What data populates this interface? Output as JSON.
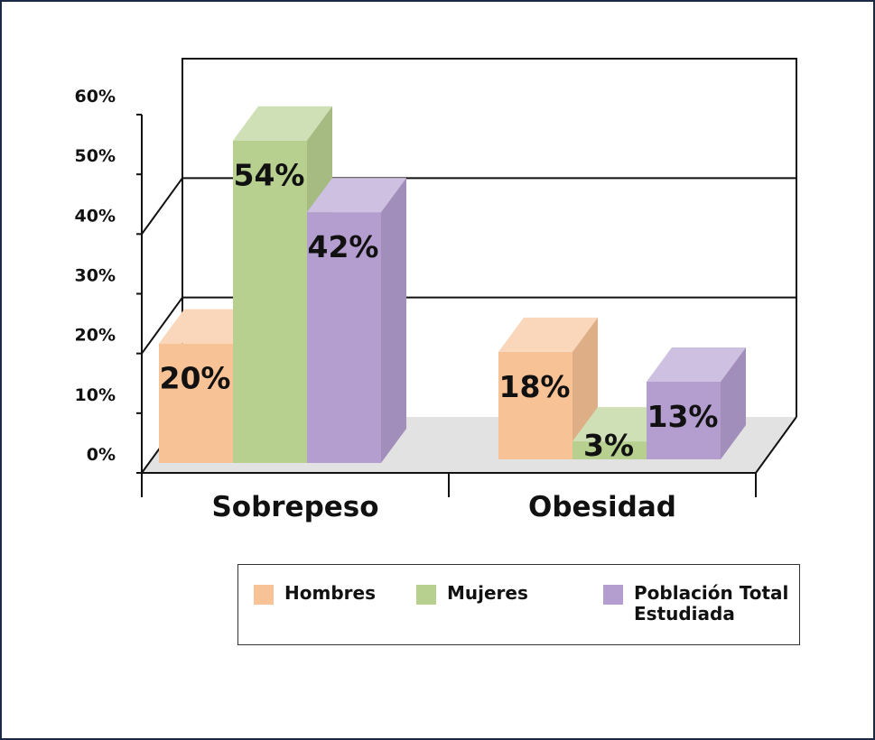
{
  "chart_data": {
    "type": "bar",
    "categories": [
      "Sobrepeso",
      "Obesidad"
    ],
    "series": [
      {
        "name": "Hombres",
        "values": [
          20,
          18
        ],
        "color": "#f7c295"
      },
      {
        "name": "Mujeres",
        "values": [
          54,
          3
        ],
        "color": "#b7d08f"
      },
      {
        "name": "Población Total Estudiada",
        "values": [
          42,
          13
        ],
        "color": "#b39ecf"
      }
    ],
    "value_labels": [
      [
        "20%",
        "18%"
      ],
      [
        "54%",
        "3%"
      ],
      [
        "42%",
        "13%"
      ]
    ],
    "y_ticks": [
      "0%",
      "10%",
      "20%",
      "30%",
      "40%",
      "50%",
      "60%"
    ],
    "ylim": [
      0,
      60
    ],
    "title": "",
    "xlabel": "",
    "ylabel": "",
    "legend_position": "bottom",
    "style": "3d"
  }
}
